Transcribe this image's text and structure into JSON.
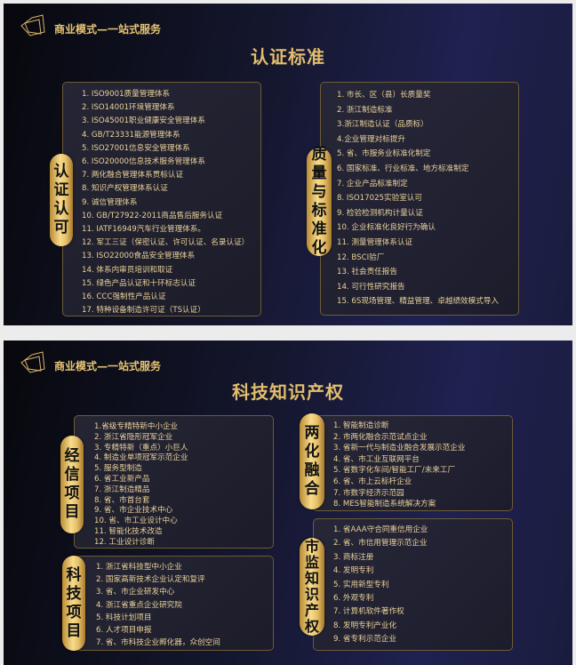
{
  "colors": {
    "accent_gold": "#e2bd6c",
    "background_dark": "#15172f",
    "list_text": "#ead29a"
  },
  "slides": [
    {
      "brand": "商业模式—一站式服务",
      "title": "认证标准",
      "logo_icon": "geometric-polygon-logo",
      "panels": [
        {
          "label": "认证认可",
          "items": [
            "1. ISO9001质量管理体系",
            "2. ISO14001环境管理体系",
            "3. ISO45001职业健康安全管理体系",
            "4. GB/T23331能源管理体系",
            "5. ISO27001信息安全管理体系",
            "6. ISO20000信息技术服务管理体系",
            "7. 两化融合管理体系贯标认证",
            "8. 知识产权管理体系认证",
            "9. 诚信管理体系",
            "10. GB/T27922-2011商品售后服务认证",
            "11. IATF16949汽车行业管理体系。",
            "12. 军工三证（保密认证、许可认证、名录认证）",
            "13. ISO22000食品安全管理体系",
            "14. 体系内审员培训和取证",
            "15. 绿色产品认证和十环标志认证",
            "16. CCC强制性产品认证",
            "17. 特种设备制造许可证（TS认证）"
          ]
        },
        {
          "label": "质量与标准化",
          "items": [
            "1. 市长、区（县）长质量奖",
            "2. 浙江制造标准",
            "3.浙江制造认证（品质标）",
            "4.企业管理对标提升",
            "5. 省、市服务业标准化制定",
            "6. 国家标准、行业标准、地方标准制定",
            "7. 企业产品标准制定",
            "8. ISO17025实验室认可",
            "9. 检验检测机构计量认证",
            "10. 企业标准化良好行为确认",
            "11. 测量管理体系认证",
            "12. BSCI验厂",
            "13. 社会责任报告",
            "14. 可行性研究报告",
            "15. 6S现场管理、精益管理、卓越绩效模式导入"
          ]
        }
      ]
    },
    {
      "brand": "商业模式—一站式服务",
      "title": "科技知识产权",
      "logo_icon": "geometric-polygon-logo",
      "panels": [
        {
          "label": "经信项目",
          "items": [
            "1.省级专精特新中小企业",
            "2. 浙江省隐形冠军企业",
            "3. 专精特新（重点）小巨人",
            "4. 制造业单项冠军示范企业",
            "5. 服务型制造",
            "6. 省工业新产品",
            "7. 浙江制造精品",
            "8. 省、市首台套",
            "9. 省、市企业技术中心",
            "10. 省、市工业设计中心",
            "11. 智能化技术改造",
            "12. 工业设计诊断"
          ]
        },
        {
          "label": "科技项目",
          "items": [
            "1. 浙江省科技型中小企业",
            "2. 国家高新技术企业认定和复评",
            "3. 省、市企业研发中心",
            "4. 浙江省重点企业研究院",
            "5. 科技计划项目",
            "6. 人才项目申报",
            "7. 省、市科技企业孵化器，众创空间"
          ]
        },
        {
          "label": "两化融合",
          "items": [
            "1. 智能制造诊断",
            "2. 市两化融合示范试点企业",
            "3. 省新一代与制造业融合发展示范企业",
            "4. 省、市工业互联网平台",
            "5. 省数字化车间/智能工厂/未来工厂",
            "6. 省、市上云标杆企业",
            "7. 市数字经济示范园",
            "8. MES智能制造系统解决方案"
          ]
        },
        {
          "label": "市监知识产权",
          "items": [
            "1. 省AAA守合同重信用企业",
            "2. 省、市信用管理示范企业",
            "3. 商标注册",
            "4. 发明专利",
            "5. 实用新型专利",
            "6. 外观专利",
            "7. 计算机软件著作权",
            "8. 发明专利产业化",
            "9. 省专利示范企业"
          ]
        }
      ]
    }
  ]
}
